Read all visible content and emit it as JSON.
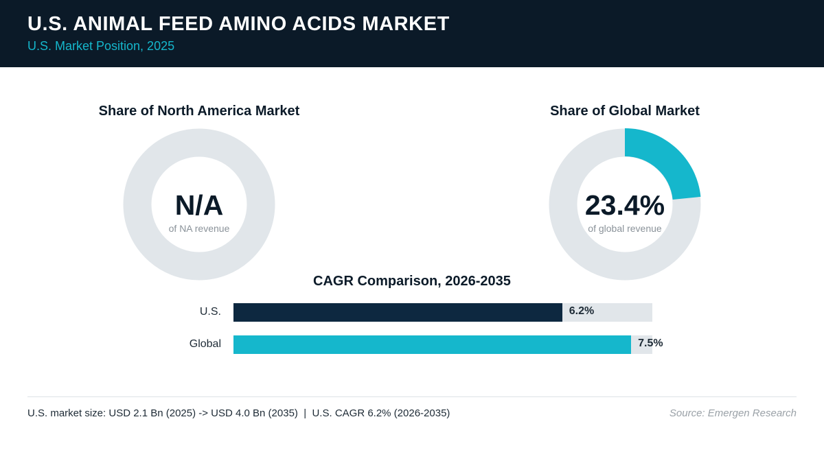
{
  "header": {
    "title": "U.S. ANIMAL FEED AMINO ACIDS MARKET",
    "subtitle": "U.S. Market Position, 2025"
  },
  "colors": {
    "header_bg": "#0b1a28",
    "accent": "#15b7cc",
    "us_bar": "#0d2840",
    "track": "#e1e6ea"
  },
  "chart_data": [
    {
      "type": "pie",
      "title": "Share of North America Market",
      "value_label": "N/A",
      "caption": "of NA revenue",
      "share_percent": null
    },
    {
      "type": "pie",
      "title": "Share of Global Market",
      "value_label": "23.4%",
      "caption": "of global revenue",
      "share_percent": 23.4
    },
    {
      "type": "bar",
      "orientation": "horizontal",
      "title": "CAGR Comparison, 2026-2035",
      "categories": [
        "U.S.",
        "Global"
      ],
      "values": [
        6.2,
        7.5
      ],
      "value_labels": [
        "6.2%",
        "7.5%"
      ],
      "xlim": [
        0,
        7.9
      ]
    }
  ],
  "footer": {
    "note": "U.S. market size: USD 2.1 Bn (2025) -> USD 4.0 Bn (2035)  |  U.S. CAGR 6.2% (2026-2035)",
    "source": "Source: Emergen Research"
  }
}
